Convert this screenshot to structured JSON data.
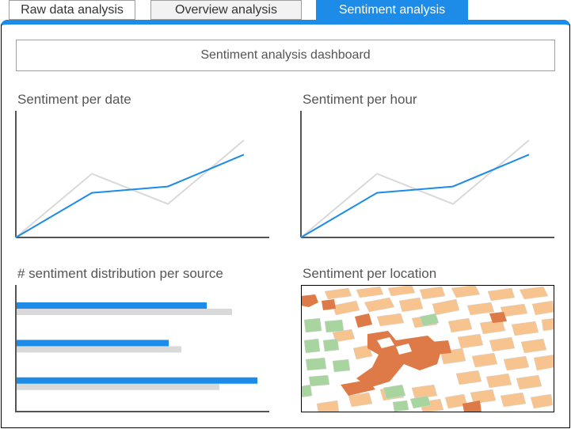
{
  "tabs": [
    {
      "label": "Raw data analysis",
      "active": false
    },
    {
      "label": "Overview analysis",
      "active": false
    },
    {
      "label": "Sentiment analysis",
      "active": true
    }
  ],
  "dashboard": {
    "title": "Sentiment analysis dashboard"
  },
  "colors": {
    "accent": "#1c8ce8",
    "secondary_series": "#d9d9d9",
    "axis": "#555555"
  },
  "chart_data": [
    {
      "type": "line",
      "title": "Sentiment per date",
      "x": [
        0,
        1,
        2,
        3
      ],
      "series": [
        {
          "values": [
            0,
            56,
            64,
            104
          ]
        },
        {
          "values": [
            0,
            80,
            42,
            122
          ]
        }
      ],
      "ylim": [
        0,
        160
      ]
    },
    {
      "type": "line",
      "title": "Sentiment per hour",
      "x": [
        0,
        1,
        2,
        3
      ],
      "series": [
        {
          "values": [
            0,
            56,
            64,
            104
          ]
        },
        {
          "values": [
            0,
            80,
            42,
            122
          ]
        }
      ],
      "ylim": [
        0,
        160
      ]
    },
    {
      "type": "bar",
      "orientation": "horizontal",
      "title": "# sentiment distribution per source",
      "categories": [
        "",
        "",
        ""
      ],
      "series": [
        {
          "values": [
            240,
            192,
            304
          ]
        },
        {
          "values": [
            272,
            208,
            256
          ]
        }
      ],
      "xlim": [
        0,
        320
      ]
    }
  ],
  "map": {
    "title": "Sentiment per location",
    "icon": "city-map-image"
  }
}
